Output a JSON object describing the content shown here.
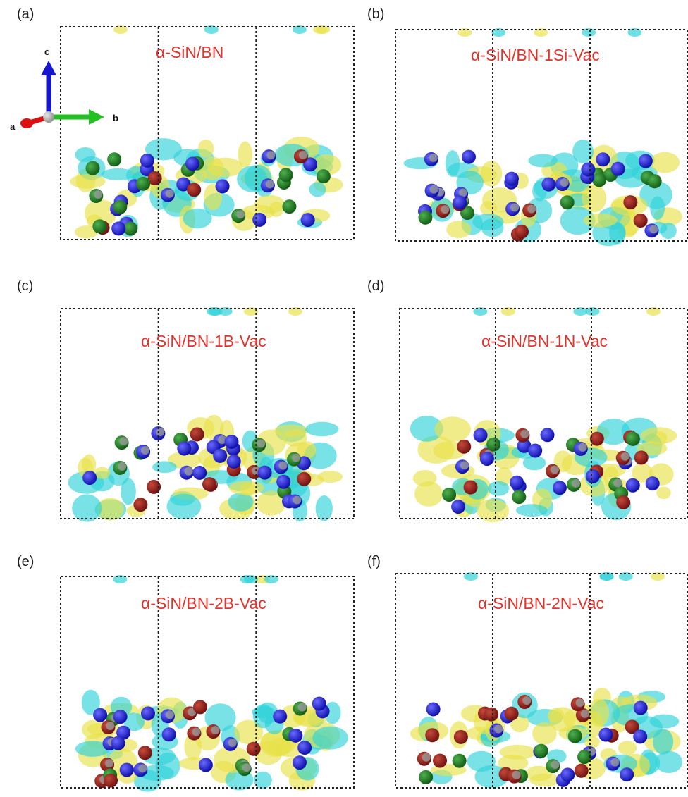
{
  "panels": [
    {
      "label": "(a)",
      "title": "α-SiN/BN"
    },
    {
      "label": "(b)",
      "title": "α-SiN/BN-1Si-Vac"
    },
    {
      "label": "(c)",
      "title": "α-SiN/BN-1B-Vac"
    },
    {
      "label": "(d)",
      "title": "α-SiN/BN-1N-Vac"
    },
    {
      "label": "(e)",
      "title": "α-SiN/BN-2B-Vac"
    },
    {
      "label": "(f)",
      "title": "α-SiN/BN-2N-Vac"
    }
  ],
  "axis_labels": {
    "c": "c",
    "b": "b",
    "a": "a"
  }
}
